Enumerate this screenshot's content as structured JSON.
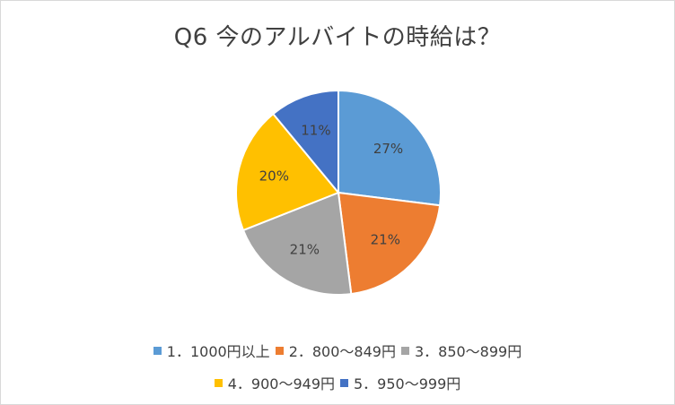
{
  "chart_data": {
    "type": "pie",
    "title": "Q6 今のアルバイトの時給は？",
    "categories": [
      "1．1000円以上",
      "2．800～849円",
      "3．850～899円",
      "4．900～949円",
      "5．950～999円"
    ],
    "values": [
      27,
      21,
      21,
      20,
      11
    ],
    "value_labels": [
      "27%",
      "21%",
      "21%",
      "20%",
      "11%"
    ],
    "colors": [
      "#5b9bd5",
      "#ed7d31",
      "#a5a5a5",
      "#ffc000",
      "#4472c4"
    ],
    "legend_position": "bottom",
    "start_angle": "12 o'clock",
    "direction": "clockwise"
  }
}
